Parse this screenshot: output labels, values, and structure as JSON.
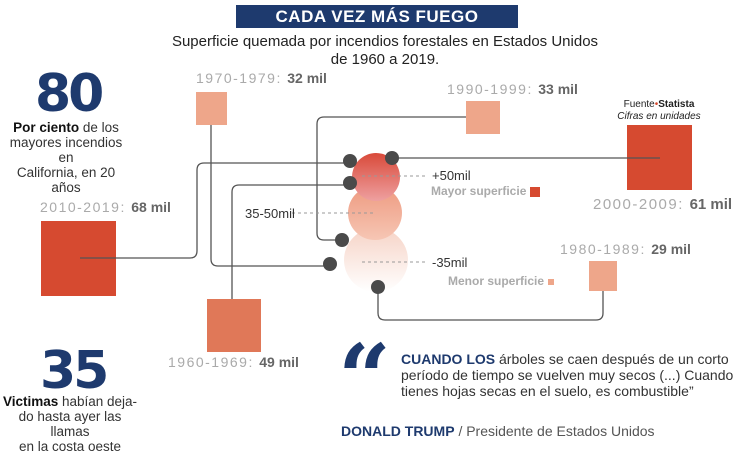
{
  "header": {
    "title": "CADA VEZ MÁS FUEGO",
    "subtitle_line1": "Superficie quemada por incendios forestales en Estados Unidos",
    "subtitle_line2": "de 1960 a 2019."
  },
  "stats": [
    {
      "number": "80",
      "bold": "Por ciento",
      "text_line1": " de los",
      "text_line2": "mayores incendios en",
      "text_line3": "California, en 20 años"
    },
    {
      "number": "35",
      "bold": "Victimas",
      "text_line1": " habían deja-",
      "text_line2": "do hasta ayer las llamas",
      "text_line3": "en la costa oeste"
    }
  ],
  "source": {
    "label": "Fuente",
    "name": "Statista",
    "note": "Cifras en unidades"
  },
  "decades": [
    {
      "period": "1960-1969:",
      "value": "49 mil",
      "amount": 49,
      "color": "#e07858"
    },
    {
      "period": "1970-1979:",
      "value": "32 mil",
      "amount": 32,
      "color": "#eea68a"
    },
    {
      "period": "1980-1989:",
      "value": "29 mil",
      "amount": 29,
      "color": "#eea68a"
    },
    {
      "period": "1990-1999:",
      "value": "33 mil",
      "amount": 33,
      "color": "#eea68a"
    },
    {
      "period": "2000-2009:",
      "value": "61 mil",
      "amount": 61,
      "color": "#d64a30"
    },
    {
      "period": "2010-2019:",
      "value": "68 mil",
      "amount": 68,
      "color": "#d64a30"
    }
  ],
  "legend": {
    "high": "+50mil",
    "high_label": "Mayor superficie",
    "mid": "35-50mil",
    "low": "-35mil",
    "low_label": "Menor superficie",
    "high_color": "#d64a30",
    "low_color": "#eea68a"
  },
  "quote": {
    "lead": "CUANDO LOS",
    "text": " árboles se caen después de un corto período de tiempo se vuelven muy secos (...) Cuando tienes hojas secas en el suelo, es combustible”",
    "author": "DONALD TRUMP",
    "role": "/ Presidente de Estados Unidos"
  },
  "colors": {
    "navy": "#1e3a6e",
    "red": "#d64a30"
  }
}
